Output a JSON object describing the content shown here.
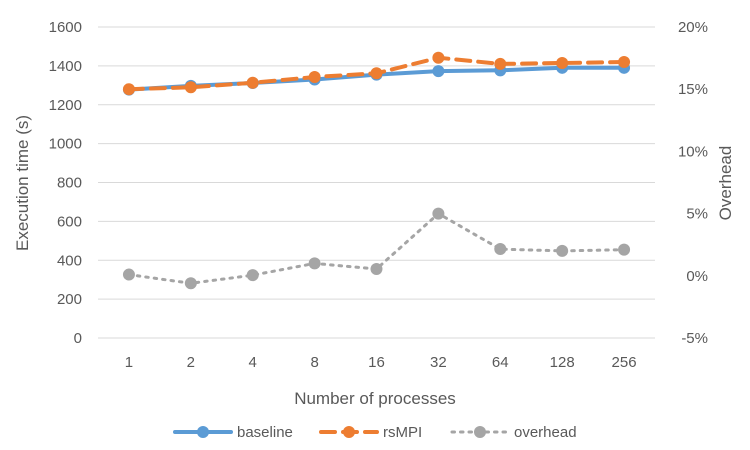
{
  "chart_data": {
    "type": "line",
    "categories": [
      "1",
      "2",
      "4",
      "8",
      "16",
      "32",
      "64",
      "128",
      "256"
    ],
    "xlabel": "Number of processes",
    "ylabel": "Execution time (s)",
    "y2label": "Overhead",
    "ylim": [
      0,
      1600
    ],
    "yticks": [
      "0",
      "200",
      "400",
      "600",
      "800",
      "1000",
      "1200",
      "1400",
      "1600"
    ],
    "y2lim": [
      -5,
      20
    ],
    "y2ticks": [
      "-5%",
      "0%",
      "5%",
      "10%",
      "15%",
      "20%"
    ],
    "grid": "horizontal",
    "legend_position": "bottom",
    "series": [
      {
        "name": "baseline",
        "axis": "left",
        "color": "#5B9BD5",
        "line_style": "solid",
        "values": [
          1278,
          1297,
          1312,
          1330,
          1355,
          1373,
          1377,
          1390,
          1390
        ]
      },
      {
        "name": "rsMPI",
        "axis": "left",
        "color": "#ED7D31",
        "line_style": "dashed",
        "values": [
          1280,
          1290,
          1313,
          1343,
          1362,
          1442,
          1410,
          1415,
          1420
        ]
      },
      {
        "name": "overhead",
        "axis": "right",
        "color": "#A5A5A5",
        "line_style": "dotted",
        "values": [
          0.1,
          -0.6,
          0.05,
          1.0,
          0.55,
          5.0,
          2.15,
          2.0,
          2.1
        ]
      }
    ]
  }
}
